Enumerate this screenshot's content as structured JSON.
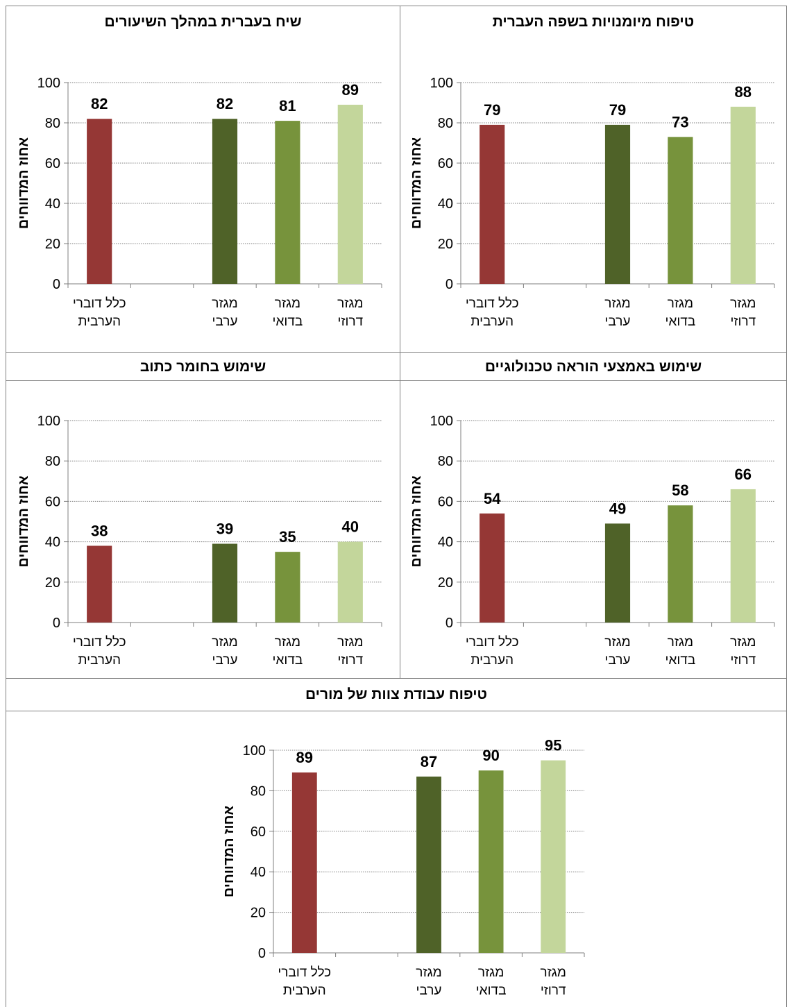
{
  "colors": {
    "all": "#953735",
    "arab": "#4f6228",
    "bedouin": "#77933c",
    "druze": "#c3d69b",
    "grid": "#7f7f7f",
    "axis": "#7f7f7f",
    "border": "#808080"
  },
  "chart_data": [
    {
      "type": "bar",
      "title": "טיפוח מיומנויות בשפה העברית",
      "ylabel": "אחוז המדווחים",
      "ylim": [
        0,
        100
      ],
      "yticks": [
        "0",
        "20",
        "40",
        "60",
        "80",
        "100"
      ],
      "categories": [
        "כלל דוברי הערבית",
        "",
        "מגזר ערבי",
        "מגזר בדואי",
        "מגזר דרוזי"
      ],
      "category_lines": [
        [
          "כלל דוברי",
          "הערבית"
        ],
        [
          "",
          ""
        ],
        [
          "מגזר",
          "ערבי"
        ],
        [
          "מגזר",
          "בדואי"
        ],
        [
          "מגזר",
          "דרוזי"
        ]
      ],
      "values": [
        79,
        null,
        79,
        73,
        88
      ],
      "grid": "horizontal dotted"
    },
    {
      "type": "bar",
      "title": "שיח בעברית במהלך השיעורים",
      "ylabel": "אחוז המדווחים",
      "ylim": [
        0,
        100
      ],
      "yticks": [
        "0",
        "20",
        "40",
        "60",
        "80",
        "100"
      ],
      "categories": [
        "כלל דוברי הערבית",
        "",
        "מגזר ערבי",
        "מגזר בדואי",
        "מגזר דרוזי"
      ],
      "category_lines": [
        [
          "כלל דוברי",
          "הערבית"
        ],
        [
          "",
          ""
        ],
        [
          "מגזר",
          "ערבי"
        ],
        [
          "מגזר",
          "בדואי"
        ],
        [
          "מגזר",
          "דרוזי"
        ]
      ],
      "values": [
        82,
        null,
        82,
        81,
        89
      ],
      "grid": "horizontal dotted"
    },
    {
      "type": "bar",
      "title": "שימוש באמצעי הוראה טכנולוגיים",
      "ylabel": "אחוז המדווחים",
      "ylim": [
        0,
        100
      ],
      "yticks": [
        "0",
        "20",
        "40",
        "60",
        "80",
        "100"
      ],
      "categories": [
        "כלל דוברי הערבית",
        "",
        "מגזר ערבי",
        "מגזר בדואי",
        "מגזר דרוזי"
      ],
      "category_lines": [
        [
          "כלל דוברי",
          "הערבית"
        ],
        [
          "",
          ""
        ],
        [
          "מגזר",
          "ערבי"
        ],
        [
          "מגזר",
          "בדואי"
        ],
        [
          "מגזר",
          "דרוזי"
        ]
      ],
      "values": [
        54,
        null,
        49,
        58,
        66
      ],
      "grid": "horizontal dotted"
    },
    {
      "type": "bar",
      "title": "שימוש בחומר כתוב",
      "ylabel": "אחוז המדווחים",
      "ylim": [
        0,
        100
      ],
      "yticks": [
        "0",
        "20",
        "40",
        "60",
        "80",
        "100"
      ],
      "categories": [
        "כלל דוברי הערבית",
        "",
        "מגזר ערבי",
        "מגזר בדואי",
        "מגזר דרוזי"
      ],
      "category_lines": [
        [
          "כלל דוברי",
          "הערבית"
        ],
        [
          "",
          ""
        ],
        [
          "מגזר",
          "ערבי"
        ],
        [
          "מגזר",
          "בדואי"
        ],
        [
          "מגזר",
          "דרוזי"
        ]
      ],
      "values": [
        38,
        null,
        39,
        35,
        40
      ],
      "grid": "horizontal dotted"
    },
    {
      "type": "bar",
      "title": "טיפוח עבודת צוות של מורים",
      "ylabel": "אחוז המדווחים",
      "ylim": [
        0,
        100
      ],
      "yticks": [
        "0",
        "20",
        "40",
        "60",
        "80",
        "100"
      ],
      "categories": [
        "כלל דוברי הערבית",
        "",
        "מגזר ערבי",
        "מגזר בדואי",
        "מגזר דרוזי"
      ],
      "category_lines": [
        [
          "כלל דוברי",
          "הערבית"
        ],
        [
          "",
          ""
        ],
        [
          "מגזר",
          "ערבי"
        ],
        [
          "מגזר",
          "בדואי"
        ],
        [
          "מגזר",
          "דרוזי"
        ]
      ],
      "values": [
        89,
        null,
        87,
        90,
        95
      ],
      "grid": "horizontal dotted"
    }
  ]
}
